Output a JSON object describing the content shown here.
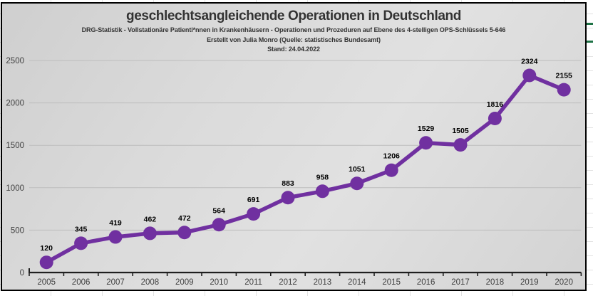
{
  "chart": {
    "title": "geschlechtsangleichende Operationen in Deutschland",
    "subtitles": [
      "DRG-Statistik - Vollstationäre Patienti*nnen in Krankenhäusern - Operationen und Prozeduren auf Ebene des 4-stelligen OPS-Schlüssels 5-646",
      "Erstellt von Julia Monro (Quelle: statistisches Bundesamt)",
      "Stand: 24.04.2022"
    ]
  },
  "chart_data": {
    "type": "line",
    "title": "geschlechtsangleichende Operationen in Deutschland",
    "categories": [
      "2005",
      "2006",
      "2007",
      "2008",
      "2009",
      "2010",
      "2011",
      "2012",
      "2013",
      "2014",
      "2015",
      "2016",
      "2017",
      "2018",
      "2019",
      "2020"
    ],
    "values": [
      120,
      345,
      419,
      462,
      472,
      564,
      691,
      883,
      958,
      1051,
      1206,
      1529,
      1505,
      1816,
      2324,
      2155
    ],
    "data_labels": [
      120,
      345,
      419,
      462,
      472,
      564,
      691,
      883,
      958,
      1051,
      1206,
      1529,
      1505,
      1816,
      2324,
      2155
    ],
    "yticks": [
      0,
      500,
      1000,
      1500,
      2000,
      2500
    ],
    "ylim": [
      0,
      2500
    ],
    "xlabel": "",
    "ylabel": "",
    "grid": true,
    "legend": "none",
    "series_name": "Operationen",
    "colors": {
      "line": "#7030A0",
      "marker": "#7030A0",
      "data_label": "#000000",
      "axis_line": "#1f1f1f",
      "axis_text": "#3f3f3f",
      "gridline": "#bdbdbd",
      "plot_background": "#d9d9d9",
      "frame_border": "#000000",
      "excel_green": "#1f7346"
    }
  }
}
